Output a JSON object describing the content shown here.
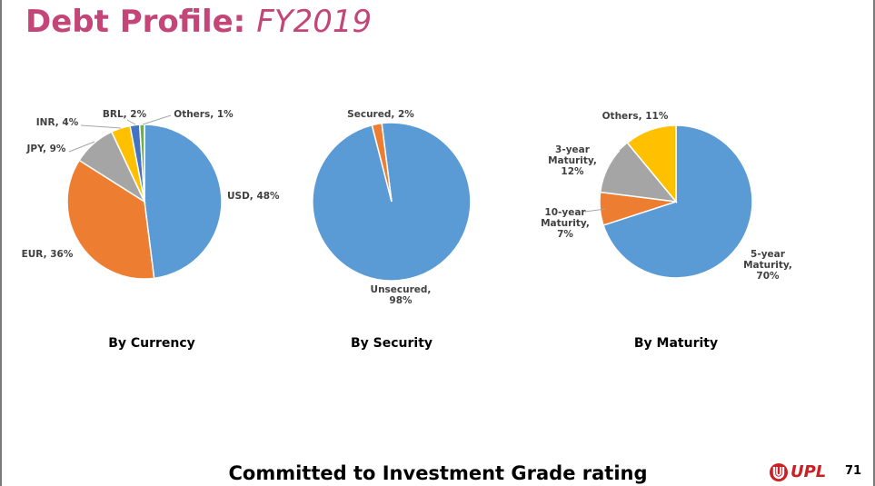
{
  "slide": {
    "title_main": "Debt Profile:",
    "title_sub": "FY2019",
    "footer": "Committed to Investment Grade rating",
    "logo_text": "UPL",
    "page_number": "71"
  },
  "colors": {
    "title": "#c44678",
    "blue": "#5b9bd5",
    "orange": "#ed7d31",
    "gray": "#a5a5a5",
    "yellow": "#ffc000",
    "darkblue": "#4472c4",
    "green": "#70ad47",
    "logo_red": "#cc1f24"
  },
  "chart_data": [
    {
      "type": "pie",
      "title": "By Currency",
      "series": [
        {
          "name": "USD",
          "value": 48,
          "label": [
            "USD, 48%"
          ],
          "color": "#5b9bd5"
        },
        {
          "name": "EUR",
          "value": 36,
          "label": [
            "EUR, 36%"
          ],
          "color": "#ed7d31"
        },
        {
          "name": "JPY",
          "value": 9,
          "label": [
            "JPY, 9%"
          ],
          "color": "#a5a5a5"
        },
        {
          "name": "INR",
          "value": 4,
          "label": [
            "INR, 4%"
          ],
          "color": "#ffc000"
        },
        {
          "name": "BRL",
          "value": 2,
          "label": [
            "BRL, 2%"
          ],
          "color": "#4472c4"
        },
        {
          "name": "Others",
          "value": 1,
          "label": [
            "Others, 1%"
          ],
          "color": "#70ad47"
        }
      ]
    },
    {
      "type": "pie",
      "title": "By Security",
      "series": [
        {
          "name": "Unsecured",
          "value": 98,
          "label": [
            "Unsecured,",
            "98%"
          ],
          "color": "#5b9bd5"
        },
        {
          "name": "Secured",
          "value": 2,
          "label": [
            "Secured, 2%"
          ],
          "color": "#ed7d31"
        }
      ]
    },
    {
      "type": "pie",
      "title": "By Maturity",
      "series": [
        {
          "name": "5-year Maturity",
          "value": 70,
          "label": [
            "5-year",
            "Maturity,",
            "70%"
          ],
          "color": "#5b9bd5"
        },
        {
          "name": "10-year Maturity",
          "value": 7,
          "label": [
            "10-year",
            "Maturity,",
            "7%"
          ],
          "color": "#ed7d31"
        },
        {
          "name": "3-year Maturity",
          "value": 12,
          "label": [
            "3-year",
            "Maturity,",
            "12%"
          ],
          "color": "#a5a5a5"
        },
        {
          "name": "Others",
          "value": 11,
          "label": [
            "Others, 11%"
          ],
          "color": "#ffc000"
        }
      ]
    }
  ]
}
